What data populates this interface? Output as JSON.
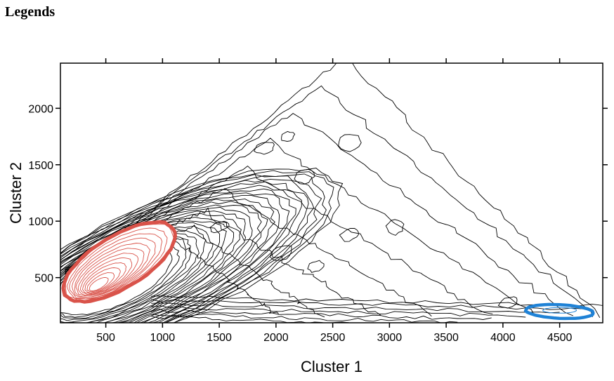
{
  "heading": "Legends",
  "chart_data": {
    "type": "contour",
    "xlabel": "Cluster 1",
    "ylabel": "Cluster 2",
    "xlim": [
      100,
      4880
    ],
    "ylim": [
      100,
      2400
    ],
    "xticks": [
      500,
      1000,
      1500,
      2000,
      2500,
      3000,
      3500,
      4000,
      4500
    ],
    "yticks": [
      500,
      1000,
      1500,
      2000
    ],
    "grid": false,
    "highlight_colors": {
      "primary_cluster": "#d9534a",
      "secondary_cluster": "#1f82d6",
      "density": "#000000"
    },
    "highlighted_regions": [
      {
        "center": [
          400,
          400
        ],
        "color": "primary_cluster"
      },
      {
        "center": [
          4500,
          200
        ],
        "color": "secondary_cluster"
      }
    ]
  }
}
